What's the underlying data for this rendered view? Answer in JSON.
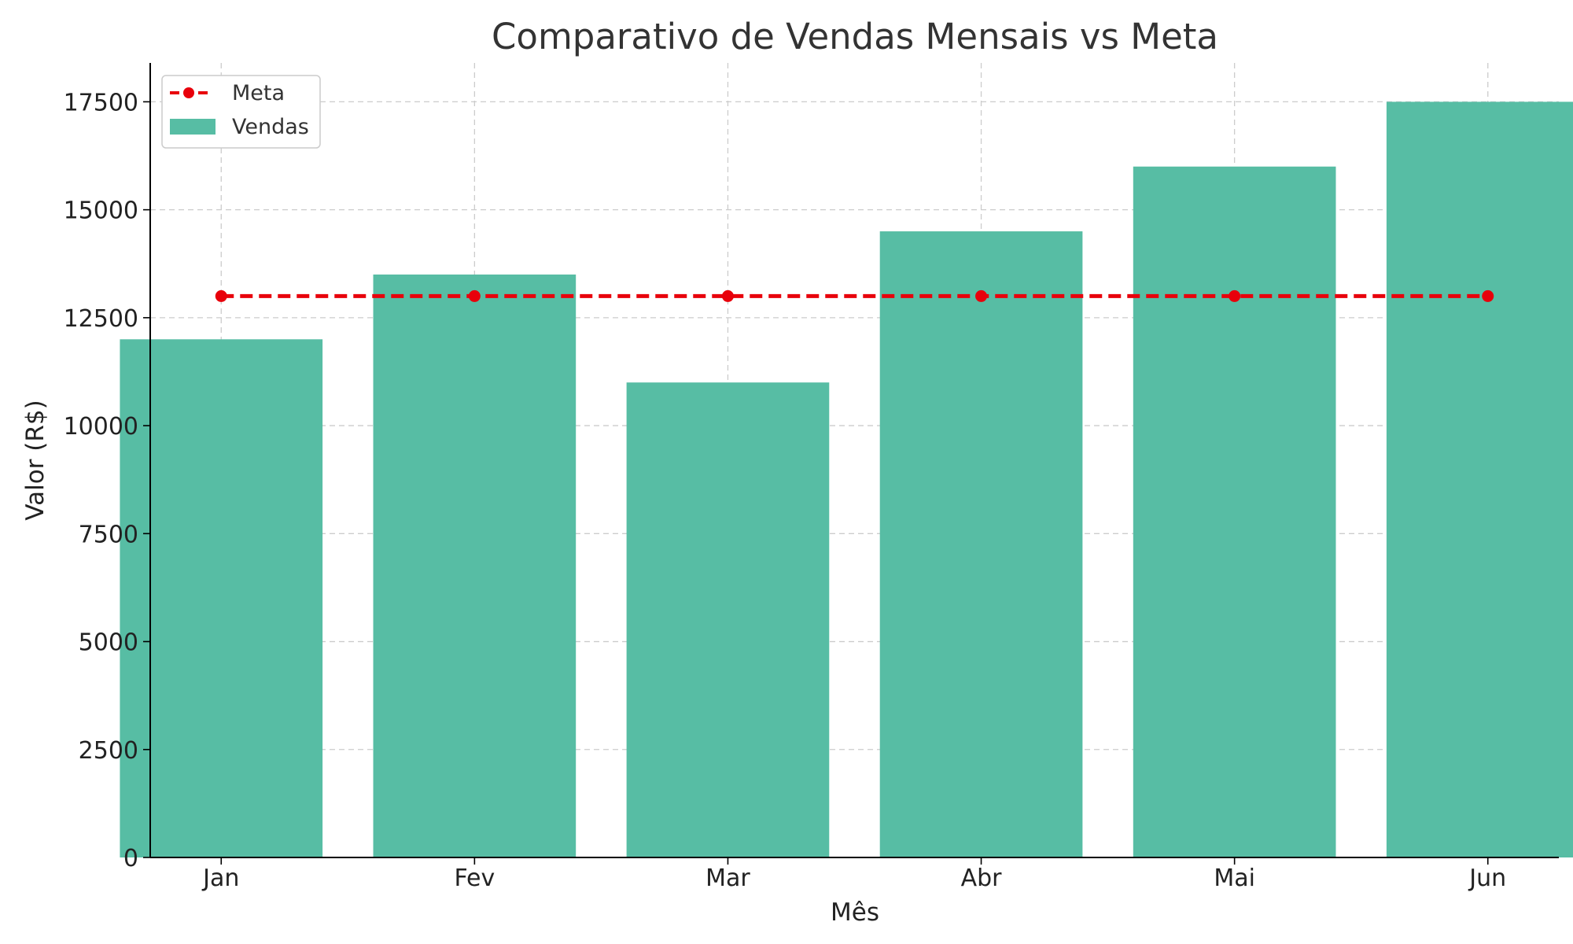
{
  "chart_data": {
    "type": "bar",
    "title": "Comparativo de Vendas Mensais vs Meta",
    "xlabel": "Mês",
    "ylabel": "Valor (R$)",
    "categories": [
      "Jan",
      "Fev",
      "Mar",
      "Abr",
      "Mai",
      "Jun"
    ],
    "ylim": [
      0,
      18400
    ],
    "yticks": [
      0,
      2500,
      5000,
      7500,
      10000,
      12500,
      15000,
      17500
    ],
    "grid": true,
    "legend_position": "top-left",
    "series": [
      {
        "name": "Vendas",
        "type": "bar",
        "color": "#57bda4",
        "values": [
          12000,
          13500,
          11000,
          14500,
          16000,
          17500
        ]
      },
      {
        "name": "Meta",
        "type": "line",
        "style": "dashed",
        "marker": "circle",
        "color": "#e8000b",
        "values": [
          13000,
          13000,
          13000,
          13000,
          13000,
          13000
        ]
      }
    ]
  }
}
